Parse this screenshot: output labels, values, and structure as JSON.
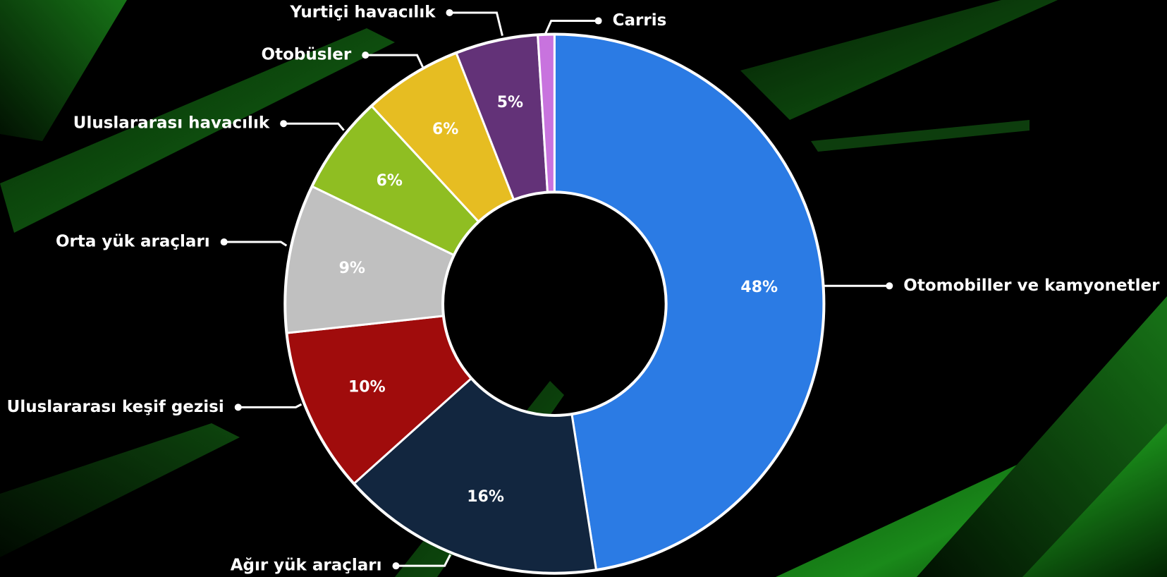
{
  "chart_data": {
    "type": "donut",
    "categories": [
      "Otomobiller ve kamyonetler",
      "Ağır yük araçları",
      "Uluslararası keşif gezisi",
      "Orta yük araçları",
      "Uluslararası havacılık",
      "Otobüsler",
      "Yurtiçi havacılık",
      "Carris"
    ],
    "values": [
      48,
      16,
      10,
      9,
      6,
      6,
      5,
      1
    ],
    "value_labels": [
      "48%",
      "16%",
      "10%",
      "9%",
      "6%",
      "6%",
      "5%",
      null
    ],
    "colors": [
      "#2b7be4",
      "#12263f",
      "#a00c0c",
      "#c0c0c0",
      "#8fbe22",
      "#e6bd22",
      "#633278",
      "#c873de"
    ]
  }
}
